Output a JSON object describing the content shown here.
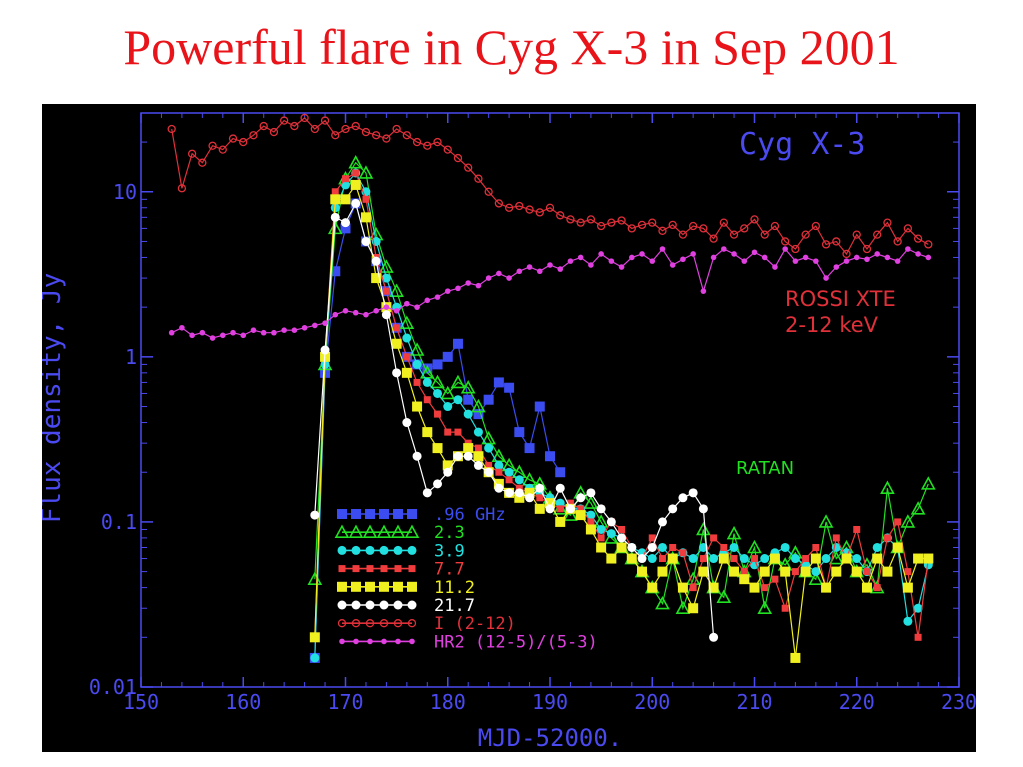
{
  "slide": {
    "title": "Powerful flare in Cyg X-3 in Sep 2001"
  },
  "colors": {
    "panel_bg": "#000000",
    "axis": "#4a4af0",
    "title_red": "#e8141a",
    "s096": "#3b4cf0",
    "s23": "#22e022",
    "s39": "#22e0e0",
    "s77": "#f03c3c",
    "s112": "#f0f020",
    "s217": "#ffffff",
    "xte": "#e0303a",
    "hr2": "#e040e0"
  },
  "chart_data": {
    "type": "line",
    "title": "Cyg X-3",
    "xlabel": "MJD-52000.",
    "ylabel": "Flux density, Jy",
    "xlim": [
      150,
      230
    ],
    "ylim": [
      0.01,
      30
    ],
    "yscale": "log",
    "x_ticks": [
      "150",
      "160",
      "170",
      "180",
      "190",
      "200",
      "210",
      "220",
      "230"
    ],
    "y_ticks": [
      {
        "value": 0.01,
        "label": "0.01"
      },
      {
        "value": 0.1,
        "label": "0.1"
      },
      {
        "value": 1,
        "label": "1"
      },
      {
        "value": 10,
        "label": "10"
      }
    ],
    "annotations": {
      "xte_line1": "ROSSI XTE",
      "xte_line2": "2-12 keV",
      "ratan": "RATAN"
    },
    "legend_placement": "lower-left",
    "series": [
      {
        "name": ".96 GHz",
        "color": "#3b4cf0",
        "marker": "square",
        "x": [
          167,
          168,
          169,
          170,
          171,
          172,
          173,
          174,
          175,
          176,
          177,
          178,
          179,
          180,
          181,
          182,
          183,
          184,
          185,
          186,
          187,
          188,
          189,
          190,
          191
        ],
        "y": [
          0.015,
          0.8,
          3.3,
          6.0,
          8.5,
          5.0,
          3.8,
          2.5,
          1.5,
          1.0,
          0.9,
          0.85,
          0.9,
          1.0,
          1.2,
          0.55,
          0.45,
          0.55,
          0.7,
          0.65,
          0.35,
          0.28,
          0.5,
          0.25,
          0.2
        ]
      },
      {
        "name": "2.3",
        "color": "#22e022",
        "marker": "triangle",
        "x": [
          167,
          168,
          169,
          170,
          171,
          172,
          173,
          174,
          175,
          176,
          177,
          178,
          179,
          180,
          181,
          182,
          183,
          184,
          185,
          186,
          187,
          188,
          189,
          190,
          191,
          192,
          193,
          194,
          195,
          196,
          197,
          198,
          199,
          200,
          201,
          202,
          203,
          204,
          205,
          206,
          207,
          208,
          209,
          210,
          211,
          212,
          213,
          214,
          215,
          216,
          217,
          218,
          219,
          220,
          221,
          222,
          223,
          224,
          225,
          226,
          227
        ],
        "y": [
          0.045,
          0.9,
          6.0,
          12.0,
          15.0,
          13.0,
          5.5,
          3.5,
          2.5,
          1.6,
          1.1,
          0.8,
          0.7,
          0.6,
          0.7,
          0.65,
          0.5,
          0.32,
          0.25,
          0.22,
          0.2,
          0.18,
          0.17,
          0.14,
          0.12,
          0.11,
          0.15,
          0.13,
          0.1,
          0.08,
          0.07,
          0.06,
          0.05,
          0.04,
          0.032,
          0.06,
          0.03,
          0.045,
          0.09,
          0.04,
          0.035,
          0.085,
          0.05,
          0.07,
          0.03,
          0.06,
          0.055,
          0.065,
          0.05,
          0.045,
          0.1,
          0.06,
          0.07,
          0.05,
          0.055,
          0.04,
          0.16,
          0.07,
          0.1,
          0.12,
          0.17
        ]
      },
      {
        "name": "3.9",
        "color": "#22e0e0",
        "marker": "circle",
        "x": [
          167,
          168,
          169,
          170,
          171,
          172,
          173,
          174,
          175,
          176,
          177,
          178,
          179,
          180,
          181,
          182,
          183,
          184,
          185,
          186,
          187,
          188,
          189,
          190,
          191,
          192,
          193,
          194,
          195,
          196,
          197,
          198,
          199,
          200,
          201,
          202,
          203,
          204,
          205,
          206,
          207,
          208,
          209,
          210,
          211,
          212,
          213,
          214,
          215,
          216,
          217,
          218,
          219,
          220,
          221,
          222,
          223,
          224,
          225,
          226,
          227
        ],
        "y": [
          0.015,
          0.9,
          8.0,
          11.0,
          13.0,
          10.0,
          5.0,
          3.0,
          2.0,
          1.3,
          0.9,
          0.7,
          0.6,
          0.5,
          0.55,
          0.45,
          0.35,
          0.28,
          0.22,
          0.2,
          0.18,
          0.16,
          0.15,
          0.14,
          0.13,
          0.12,
          0.12,
          0.11,
          0.09,
          0.085,
          0.08,
          0.07,
          0.065,
          0.06,
          0.07,
          0.06,
          0.065,
          0.06,
          0.07,
          0.06,
          0.065,
          0.07,
          0.06,
          0.055,
          0.06,
          0.065,
          0.07,
          0.06,
          0.055,
          0.05,
          0.06,
          0.07,
          0.065,
          0.06,
          0.05,
          0.07,
          0.08,
          0.07,
          0.025,
          0.03,
          0.055
        ]
      },
      {
        "name": "7.7",
        "color": "#f03c3c",
        "marker": "square-small",
        "x": [
          167,
          168,
          169,
          170,
          171,
          172,
          173,
          174,
          175,
          176,
          177,
          178,
          179,
          180,
          181,
          182,
          183,
          184,
          185,
          186,
          187,
          188,
          189,
          190,
          191,
          192,
          193,
          194,
          195,
          196,
          197,
          198,
          199,
          200,
          201,
          202,
          203,
          204,
          205,
          206,
          207,
          208,
          209,
          210,
          211,
          212,
          213,
          214,
          215,
          216,
          217,
          218,
          219,
          220,
          221,
          222,
          223,
          224,
          225,
          226,
          227
        ],
        "y": [
          0.02,
          1.0,
          10.0,
          12.0,
          13.0,
          9.0,
          4.0,
          2.5,
          1.5,
          1.0,
          0.7,
          0.55,
          0.45,
          0.35,
          0.35,
          0.3,
          0.28,
          0.22,
          0.2,
          0.18,
          0.16,
          0.15,
          0.14,
          0.13,
          0.12,
          0.13,
          0.12,
          0.1,
          0.08,
          0.1,
          0.09,
          0.07,
          0.06,
          0.08,
          0.06,
          0.07,
          0.065,
          0.04,
          0.06,
          0.08,
          0.07,
          0.06,
          0.05,
          0.06,
          0.04,
          0.045,
          0.03,
          0.05,
          0.06,
          0.07,
          0.04,
          0.08,
          0.06,
          0.09,
          0.05,
          0.04,
          0.08,
          0.1,
          0.05,
          0.02,
          0.06
        ]
      },
      {
        "name": "11.2",
        "color": "#f0f020",
        "marker": "square",
        "x": [
          167,
          168,
          169,
          170,
          171,
          172,
          173,
          174,
          175,
          176,
          177,
          178,
          179,
          180,
          181,
          182,
          183,
          184,
          185,
          186,
          187,
          188,
          189,
          190,
          191,
          192,
          193,
          194,
          195,
          196,
          197,
          198,
          199,
          200,
          201,
          202,
          203,
          204,
          205,
          206,
          207,
          208,
          209,
          210,
          211,
          212,
          213,
          214,
          215,
          216,
          217,
          218,
          219,
          220,
          221,
          222,
          223,
          224,
          225,
          226,
          227
        ],
        "y": [
          0.02,
          1.0,
          9.0,
          9.0,
          11.0,
          7.0,
          3.0,
          2.0,
          1.2,
          0.8,
          0.5,
          0.35,
          0.28,
          0.22,
          0.25,
          0.28,
          0.25,
          0.2,
          0.17,
          0.15,
          0.14,
          0.15,
          0.12,
          0.13,
          0.1,
          0.12,
          0.11,
          0.09,
          0.07,
          0.06,
          0.07,
          0.06,
          0.05,
          0.04,
          0.05,
          0.06,
          0.04,
          0.03,
          0.05,
          0.04,
          0.06,
          0.05,
          0.045,
          0.04,
          0.05,
          0.06,
          0.05,
          0.015,
          0.05,
          0.06,
          0.04,
          0.05,
          0.06,
          0.05,
          0.04,
          0.06,
          0.05,
          0.07,
          0.04,
          0.06,
          0.06
        ]
      },
      {
        "name": "21.7",
        "color": "#ffffff",
        "marker": "circle",
        "x": [
          167,
          168,
          169,
          170,
          171,
          172,
          173,
          174,
          175,
          176,
          177,
          178,
          179,
          180,
          181,
          182,
          183,
          184,
          185,
          186,
          187,
          188,
          189,
          190,
          191,
          192,
          193,
          194,
          195,
          196,
          197,
          198,
          199,
          200,
          201,
          202,
          203,
          204,
          205,
          206
        ],
        "y": [
          0.11,
          1.1,
          7.0,
          6.5,
          8.5,
          5.0,
          3.8,
          1.8,
          0.8,
          0.4,
          0.25,
          0.15,
          0.17,
          0.2,
          0.25,
          0.25,
          0.22,
          0.2,
          0.16,
          0.15,
          0.15,
          0.14,
          0.16,
          0.12,
          0.16,
          0.12,
          0.14,
          0.15,
          0.12,
          0.1,
          0.08,
          0.07,
          0.06,
          0.07,
          0.1,
          0.12,
          0.14,
          0.15,
          0.12,
          0.02
        ]
      },
      {
        "name": "I (2-12)",
        "color": "#e0303a",
        "marker": "circle-open",
        "x": [
          153,
          154,
          155,
          156,
          157,
          158,
          159,
          160,
          161,
          162,
          163,
          164,
          165,
          166,
          167,
          168,
          169,
          170,
          171,
          172,
          173,
          174,
          175,
          176,
          177,
          178,
          179,
          180,
          181,
          182,
          183,
          184,
          185,
          186,
          187,
          188,
          189,
          190,
          191,
          192,
          193,
          194,
          195,
          196,
          197,
          198,
          199,
          200,
          201,
          202,
          203,
          204,
          205,
          206,
          207,
          208,
          209,
          210,
          211,
          212,
          213,
          214,
          215,
          216,
          217,
          218,
          219,
          220,
          221,
          222,
          223,
          224,
          225,
          226,
          227
        ],
        "y": [
          24,
          10.5,
          17,
          15,
          19,
          18,
          21,
          20,
          22,
          25,
          23,
          27,
          25,
          28,
          24,
          27,
          22,
          24,
          25,
          23,
          22,
          21,
          24,
          22,
          20,
          19,
          20,
          18,
          16,
          14,
          12,
          10,
          8.5,
          8,
          8.2,
          7.8,
          7.5,
          8,
          7.2,
          6.8,
          6.5,
          6.8,
          6.2,
          6.5,
          6.7,
          6,
          6.3,
          6.5,
          5.8,
          6.3,
          5.5,
          6.2,
          6,
          5.2,
          6.5,
          5.5,
          6,
          6.8,
          5.5,
          6.2,
          5,
          4.5,
          5.5,
          6.2,
          4.8,
          5,
          4.2,
          5.5,
          4.5,
          5.5,
          6.5,
          5,
          6,
          5.2,
          4.8
        ]
      },
      {
        "name": "HR2 (12-5)/(5-3)",
        "color": "#e040e0",
        "marker": "circle-small",
        "x": [
          153,
          154,
          155,
          156,
          157,
          158,
          159,
          160,
          161,
          162,
          163,
          164,
          165,
          166,
          167,
          168,
          169,
          170,
          171,
          172,
          173,
          174,
          175,
          176,
          177,
          178,
          179,
          180,
          181,
          182,
          183,
          184,
          185,
          186,
          187,
          188,
          189,
          190,
          191,
          192,
          193,
          194,
          195,
          196,
          197,
          198,
          199,
          200,
          201,
          202,
          203,
          204,
          205,
          206,
          207,
          208,
          209,
          210,
          211,
          212,
          213,
          214,
          215,
          216,
          217,
          218,
          219,
          220,
          221,
          222,
          223,
          224,
          225,
          226,
          227
        ],
        "y": [
          1.4,
          1.5,
          1.35,
          1.4,
          1.3,
          1.35,
          1.4,
          1.35,
          1.45,
          1.4,
          1.4,
          1.45,
          1.45,
          1.5,
          1.55,
          1.6,
          1.8,
          1.9,
          1.85,
          1.8,
          1.9,
          2.0,
          1.9,
          2.1,
          2.0,
          2.2,
          2.3,
          2.5,
          2.6,
          2.8,
          2.7,
          3.0,
          3.2,
          3.0,
          3.3,
          3.5,
          3.3,
          3.6,
          3.4,
          3.8,
          4.0,
          3.6,
          4.2,
          3.8,
          3.5,
          4.0,
          4.2,
          3.8,
          4.5,
          3.6,
          3.9,
          4.2,
          2.5,
          4.0,
          4.5,
          4.2,
          3.8,
          4.3,
          4.0,
          3.5,
          4.5,
          3.8,
          4.0,
          3.8,
          3.0,
          3.5,
          3.8,
          4.0,
          3.9,
          4.2,
          4.0,
          3.8,
          4.5,
          4.2,
          4.0
        ]
      }
    ]
  }
}
